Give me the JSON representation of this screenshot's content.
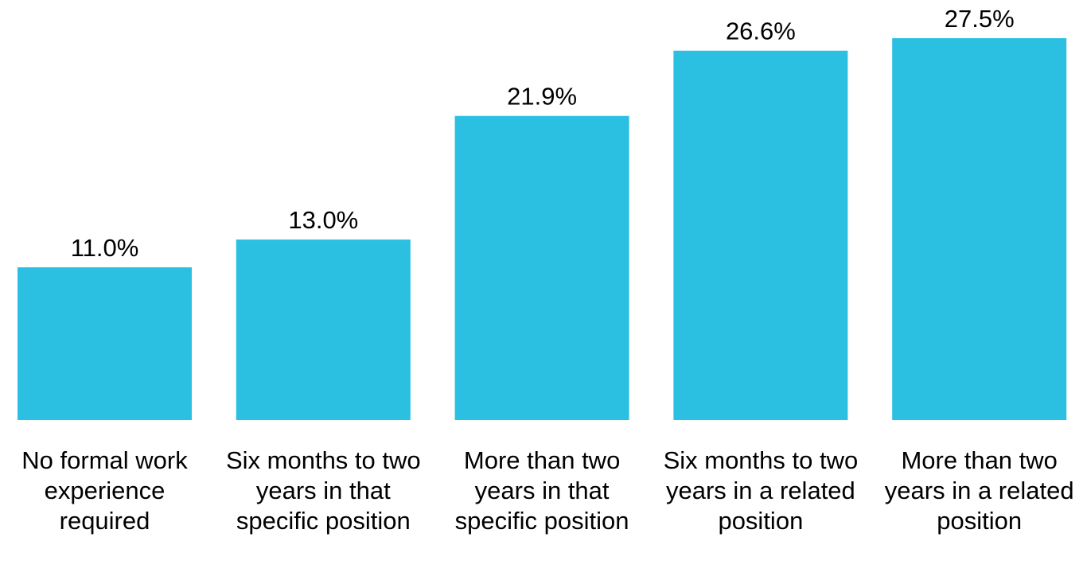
{
  "chart_data": {
    "type": "bar",
    "categories": [
      "No formal work experience required",
      "Six months to two years in that specific position",
      "More than two years in that specific position",
      "Six months to two years in a related position",
      "More than two years in a related position"
    ],
    "values": [
      11.0,
      13.0,
      21.9,
      26.6,
      27.5
    ],
    "value_labels": [
      "11.0%",
      "13.0%",
      "21.9%",
      "26.6%",
      "27.5%"
    ],
    "color": "#2bc0e2"
  }
}
